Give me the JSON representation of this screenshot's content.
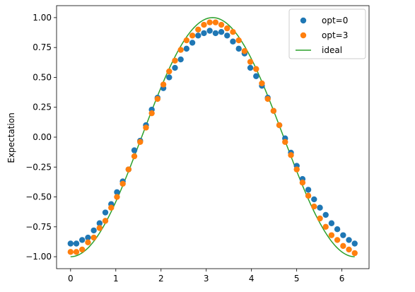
{
  "chart_data": {
    "type": "scatter",
    "title": "",
    "xlabel": "",
    "ylabel": "Expectation",
    "xlim": [
      -0.31,
      6.6
    ],
    "ylim": [
      -1.1,
      1.1
    ],
    "xticks": [
      0,
      1,
      2,
      3,
      4,
      5,
      6
    ],
    "yticks": [
      -1.0,
      -0.75,
      -0.5,
      -0.25,
      0.0,
      0.25,
      0.5,
      0.75,
      1.0
    ],
    "xtick_labels": [
      "0",
      "1",
      "2",
      "3",
      "4",
      "5",
      "6"
    ],
    "ytick_labels": [
      "−1.00",
      "−0.75",
      "−0.50",
      "−0.25",
      "0.00",
      "0.25",
      "0.50",
      "0.75",
      "1.00"
    ],
    "grid": false,
    "legend_position": "top-right",
    "x": [
      0.0,
      0.128,
      0.256,
      0.385,
      0.513,
      0.641,
      0.769,
      0.898,
      1.026,
      1.154,
      1.282,
      1.41,
      1.539,
      1.667,
      1.795,
      1.923,
      2.052,
      2.18,
      2.308,
      2.436,
      2.564,
      2.693,
      2.821,
      2.949,
      3.077,
      3.206,
      3.334,
      3.462,
      3.59,
      3.719,
      3.847,
      3.975,
      4.103,
      4.231,
      4.36,
      4.488,
      4.616,
      4.744,
      4.873,
      5.001,
      5.129,
      5.257,
      5.385,
      5.514,
      5.642,
      5.77,
      5.898,
      6.027,
      6.155,
      6.283
    ],
    "series": [
      {
        "name": "opt=0",
        "kind": "scatter",
        "color": "#1f77b4",
        "values": [
          -0.89,
          -0.89,
          -0.86,
          -0.84,
          -0.78,
          -0.72,
          -0.63,
          -0.56,
          -0.46,
          -0.37,
          -0.27,
          -0.11,
          -0.03,
          0.1,
          0.23,
          0.33,
          0.41,
          0.5,
          0.58,
          0.65,
          0.74,
          0.79,
          0.85,
          0.87,
          0.89,
          0.87,
          0.88,
          0.85,
          0.8,
          0.74,
          0.7,
          0.58,
          0.51,
          0.43,
          0.33,
          0.22,
          0.1,
          -0.01,
          -0.13,
          -0.24,
          -0.35,
          -0.44,
          -0.52,
          -0.59,
          -0.65,
          -0.72,
          -0.77,
          -0.82,
          -0.86,
          -0.89
        ]
      },
      {
        "name": "opt=3",
        "kind": "scatter",
        "color": "#ff7f0e",
        "values": [
          -0.96,
          -0.96,
          -0.94,
          -0.88,
          -0.84,
          -0.76,
          -0.7,
          -0.59,
          -0.5,
          -0.39,
          -0.27,
          -0.16,
          -0.04,
          0.08,
          0.2,
          0.32,
          0.44,
          0.55,
          0.64,
          0.73,
          0.81,
          0.85,
          0.9,
          0.94,
          0.96,
          0.96,
          0.94,
          0.91,
          0.88,
          0.81,
          0.72,
          0.63,
          0.57,
          0.45,
          0.32,
          0.22,
          0.1,
          -0.04,
          -0.15,
          -0.27,
          -0.38,
          -0.49,
          -0.58,
          -0.68,
          -0.75,
          -0.82,
          -0.86,
          -0.91,
          -0.94,
          -0.97
        ]
      },
      {
        "name": "ideal",
        "kind": "line",
        "color": "#2ca02c",
        "function": "-cos(x)"
      }
    ]
  }
}
